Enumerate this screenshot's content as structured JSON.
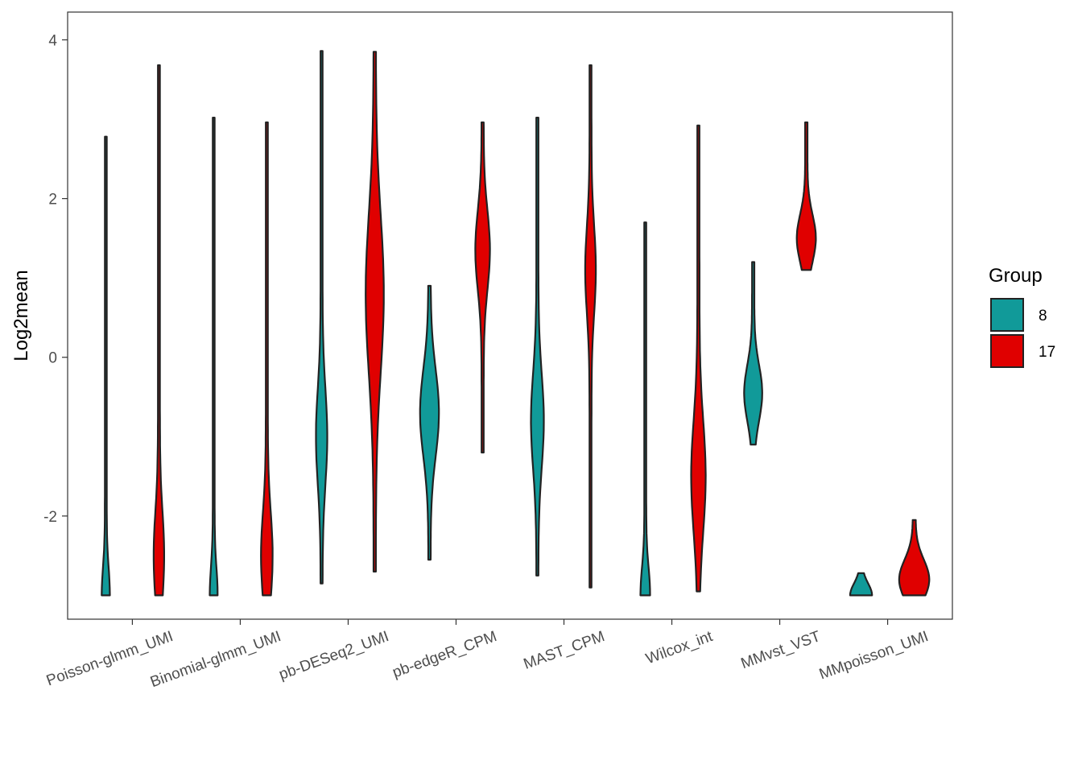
{
  "chart_data": {
    "type": "violin",
    "ylabel": "Log2mean",
    "xlabel": "",
    "ylim": [
      -3.3,
      4.35
    ],
    "y_ticks": [
      -2,
      0,
      2,
      4
    ],
    "y_tick_labels": [
      "-2",
      "0",
      "2",
      "4"
    ],
    "grid": false,
    "legend": {
      "title": "Group",
      "placement": "right",
      "entries": [
        {
          "label": "8",
          "color": "#119A99"
        },
        {
          "label": "17",
          "color": "#E00000"
        }
      ]
    },
    "categories": [
      "Poisson-glmm_UMI",
      "Binomial-glmm_UMI",
      "pb-DESeq2_UMI",
      "pb-edgeR_CPM",
      "MAST_CPM",
      "Wilcox_int",
      "MMvst_VST",
      "MMpoisson_UMI"
    ],
    "series": [
      {
        "name": "8",
        "color": "#119A99",
        "violins": [
          {
            "min": -3.0,
            "max": 2.78,
            "peak": -3.0,
            "spread": 0.35
          },
          {
            "min": -3.0,
            "max": 3.02,
            "peak": -3.0,
            "spread": 0.35
          },
          {
            "min": -2.85,
            "max": 3.86,
            "peak": -1.0,
            "spread": 0.6
          },
          {
            "min": -2.55,
            "max": 0.9,
            "peak": -0.7,
            "spread": 0.55
          },
          {
            "min": -2.75,
            "max": 3.02,
            "peak": -0.8,
            "spread": 0.6
          },
          {
            "min": -3.0,
            "max": 1.7,
            "peak": -3.0,
            "spread": 0.35
          },
          {
            "min": -1.1,
            "max": 1.2,
            "peak": -0.45,
            "spread": 0.35
          },
          {
            "min": -3.0,
            "max": -2.72,
            "peak": -3.0,
            "spread": 0.15
          }
        ]
      },
      {
        "name": "17",
        "color": "#E00000",
        "violins": [
          {
            "min": -3.0,
            "max": 3.68,
            "peak": -2.5,
            "spread": 0.55
          },
          {
            "min": -3.0,
            "max": 2.96,
            "peak": -2.5,
            "spread": 0.55
          },
          {
            "min": -2.7,
            "max": 3.85,
            "peak": 0.8,
            "spread": 1.0
          },
          {
            "min": -1.2,
            "max": 2.96,
            "peak": 1.35,
            "spread": 0.5
          },
          {
            "min": -2.9,
            "max": 3.68,
            "peak": 1.1,
            "spread": 0.55
          },
          {
            "min": -2.95,
            "max": 2.92,
            "peak": -1.5,
            "spread": 0.7
          },
          {
            "min": 1.1,
            "max": 2.96,
            "peak": 1.5,
            "spread": 0.3
          },
          {
            "min": -3.0,
            "max": -2.05,
            "peak": -2.8,
            "spread": 0.25
          }
        ]
      }
    ]
  }
}
